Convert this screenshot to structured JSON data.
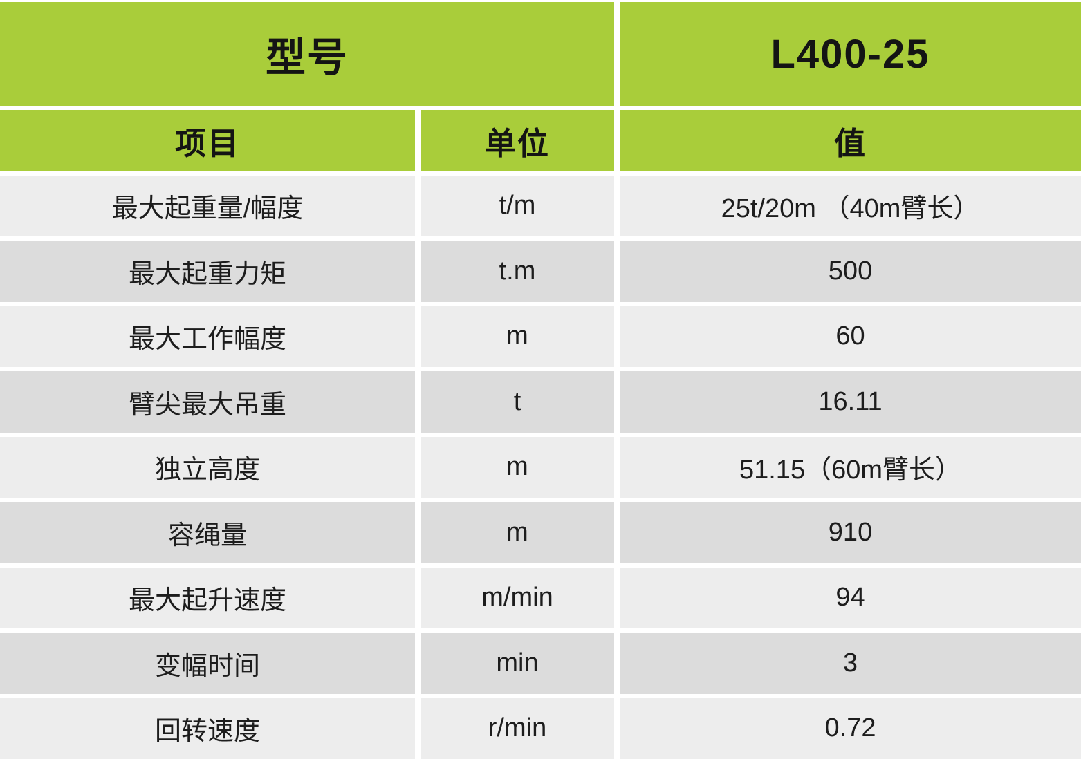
{
  "header": {
    "model_label": "型号",
    "model_value": "L400-25"
  },
  "columns": {
    "item": "项目",
    "unit": "单位",
    "value": "值"
  },
  "rows": [
    {
      "item": "最大起重量/幅度",
      "unit": "t/m",
      "value": "25t/20m （40m臂长）"
    },
    {
      "item": "最大起重力矩",
      "unit": "t.m",
      "value": "500"
    },
    {
      "item": "最大工作幅度",
      "unit": "m",
      "value": "60"
    },
    {
      "item": "臂尖最大吊重",
      "unit": "t",
      "value": "16.11"
    },
    {
      "item": "独立高度",
      "unit": "m",
      "value": "51.15（60m臂长）"
    },
    {
      "item": "容绳量",
      "unit": "m",
      "value": "910"
    },
    {
      "item": "最大起升速度",
      "unit": "m/min",
      "value": "94"
    },
    {
      "item": "变幅时间",
      "unit": "min",
      "value": "3"
    },
    {
      "item": "回转速度",
      "unit": "r/min",
      "value": "0.72"
    }
  ],
  "colors": {
    "header_green": "#a9cd3a",
    "row_light": "#ededed",
    "row_dark": "#dcdcdc",
    "gutter": "#ffffff",
    "text": "#1d1d1d"
  }
}
